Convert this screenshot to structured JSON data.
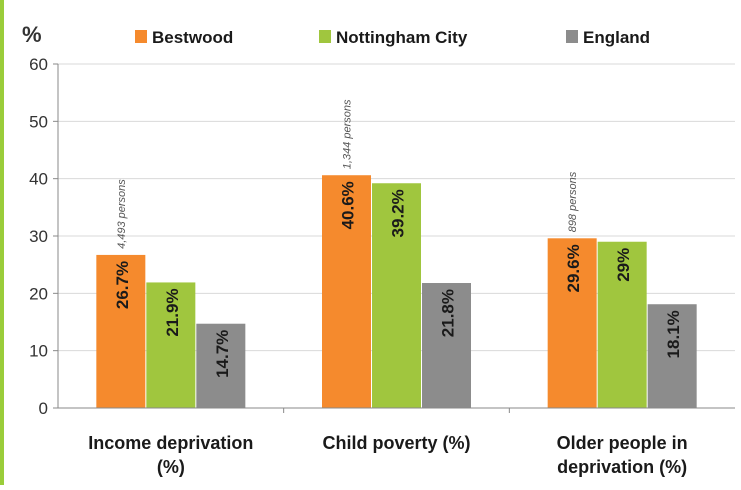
{
  "chart_data": {
    "type": "bar",
    "y_unit_label": "%",
    "categories": [
      [
        "Income deprivation",
        "(%)"
      ],
      [
        "Child poverty (%)"
      ],
      [
        "Older people in",
        "deprivation (%)"
      ]
    ],
    "series": [
      {
        "name": "Bestwood",
        "color": "#f58a2d",
        "values": [
          26.7,
          40.6,
          29.6
        ],
        "value_labels": [
          "26.7%",
          "40.6%",
          "29.6%"
        ]
      },
      {
        "name": "Nottingham City",
        "color": "#a0c63e",
        "values": [
          21.9,
          39.2,
          29
        ],
        "value_labels": [
          "21.9%",
          "39.2%",
          "29%"
        ]
      },
      {
        "name": "England",
        "color": "#8c8c8c",
        "values": [
          14.7,
          21.8,
          18.1
        ],
        "value_labels": [
          "14.7%",
          "21.8%",
          "18.1%"
        ]
      }
    ],
    "annotations": [
      "4,493 persons",
      "1,344 persons",
      "898 persons"
    ],
    "ylim": [
      0,
      60
    ],
    "yticks": [
      0,
      10,
      20,
      30,
      40,
      50,
      60
    ],
    "grid": true,
    "legend_position": "top"
  }
}
